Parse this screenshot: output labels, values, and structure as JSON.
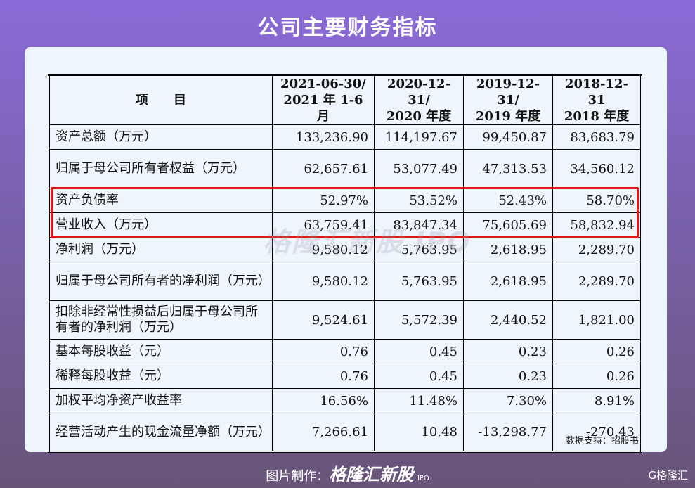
{
  "title": "公司主要财务指标",
  "table": {
    "headers": [
      [
        "项　　目",
        ""
      ],
      [
        "2021-06-30/",
        "2021 年 1-6 月"
      ],
      [
        "2020-12-31/",
        "2020 年度"
      ],
      [
        "2019-12-31/",
        "2019 年度"
      ],
      [
        "2018-12-31",
        "2018 年度"
      ]
    ],
    "rows": [
      {
        "label": "资产总额（万元）",
        "values": [
          "133,236.90",
          "114,197.67",
          "99,450.87",
          "83,683.79"
        ]
      },
      {
        "label": "归属于母公司所有者权益（万元）",
        "values": [
          "62,657.61",
          "53,077.49",
          "47,313.53",
          "34,560.12"
        ]
      },
      {
        "label": "资产负债率",
        "values": [
          "52.97%",
          "53.52%",
          "52.43%",
          "58.70%"
        ]
      },
      {
        "label": "营业收入（万元）",
        "values": [
          "63,759.41",
          "83,847.34",
          "75,605.69",
          "58,832.94"
        ],
        "highlighted": true
      },
      {
        "label": "净利润（万元）",
        "values": [
          "9,580.12",
          "5,763.95",
          "2,618.95",
          "2,289.70"
        ],
        "highlighted": true
      },
      {
        "label": "归属于母公司所有者的净利润（万元）",
        "values": [
          "9,580.12",
          "5,763.95",
          "2,618.95",
          "2,289.70"
        ]
      },
      {
        "label": "扣除非经常性损益后归属于母公司所有者的净利润（万元）",
        "values": [
          "9,524.61",
          "5,572.39",
          "2,440.52",
          "1,821.00"
        ]
      },
      {
        "label": "基本每股收益（元）",
        "values": [
          "0.76",
          "0.45",
          "0.23",
          "0.26"
        ]
      },
      {
        "label": "稀释每股收益（元）",
        "values": [
          "0.76",
          "0.45",
          "0.23",
          "0.26"
        ]
      },
      {
        "label": "加权平均净资产收益率",
        "values": [
          "16.56%",
          "11.48%",
          "7.30%",
          "8.91%"
        ]
      },
      {
        "label": "经营活动产生的现金流量净额（万元）",
        "values": [
          "7,266.61",
          "10.48",
          "-13,298.77",
          "-270.43"
        ]
      }
    ]
  },
  "highlight_color": "#e0161c",
  "watermark": "格隆汇新股 IPO",
  "source": "数据支持：招股书",
  "footer": {
    "prefix": "图片制作：",
    "brand": "格隆汇新股",
    "brand_sub": "IPO"
  },
  "corner_logo": "G格隆汇"
}
